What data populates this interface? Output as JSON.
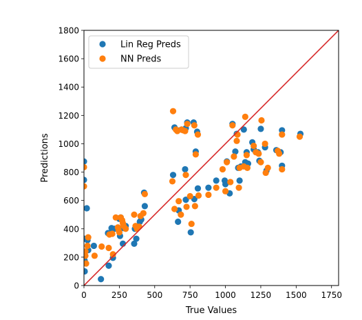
{
  "chart_data": {
    "type": "scatter",
    "title": "",
    "xlabel": "True Values",
    "ylabel": "Predictions",
    "xlim": [
      0,
      1800
    ],
    "ylim": [
      0,
      1800
    ],
    "xticks": [
      0,
      250,
      500,
      750,
      1000,
      1250,
      1500,
      1750
    ],
    "yticks": [
      0,
      200,
      400,
      600,
      800,
      1000,
      1200,
      1400,
      1600,
      1800
    ],
    "grid": false,
    "legend_position": "top-left",
    "reference_line": {
      "from": [
        0,
        0
      ],
      "to": [
        1800,
        1800
      ],
      "color": "#d62728"
    },
    "series": [
      {
        "name": "Lin Reg Preds",
        "color": "#1f77b4",
        "points": [
          [
            0,
            875
          ],
          [
            0,
            745
          ],
          [
            5,
            330
          ],
          [
            5,
            175
          ],
          [
            5,
            100
          ],
          [
            20,
            545
          ],
          [
            25,
            320
          ],
          [
            30,
            250
          ],
          [
            70,
            280
          ],
          [
            120,
            45
          ],
          [
            170,
            370
          ],
          [
            175,
            140
          ],
          [
            195,
            405
          ],
          [
            205,
            195
          ],
          [
            215,
            400
          ],
          [
            255,
            350
          ],
          [
            250,
            470
          ],
          [
            260,
            480
          ],
          [
            275,
            295
          ],
          [
            280,
            405
          ],
          [
            295,
            420
          ],
          [
            355,
            295
          ],
          [
            360,
            400
          ],
          [
            370,
            330
          ],
          [
            395,
            450
          ],
          [
            405,
            465
          ],
          [
            425,
            655
          ],
          [
            430,
            560
          ],
          [
            630,
            780
          ],
          [
            640,
            1115
          ],
          [
            660,
            1095
          ],
          [
            665,
            450
          ],
          [
            670,
            530
          ],
          [
            690,
            1100
          ],
          [
            715,
            820
          ],
          [
            720,
            1110
          ],
          [
            720,
            605
          ],
          [
            730,
            1150
          ],
          [
            755,
            375
          ],
          [
            775,
            1150
          ],
          [
            780,
            610
          ],
          [
            790,
            945
          ],
          [
            800,
            1085
          ],
          [
            805,
            685
          ],
          [
            880,
            690
          ],
          [
            935,
            740
          ],
          [
            995,
            740
          ],
          [
            1000,
            715
          ],
          [
            1010,
            875
          ],
          [
            1030,
            650
          ],
          [
            1050,
            1140
          ],
          [
            1070,
            945
          ],
          [
            1080,
            1070
          ],
          [
            1090,
            830
          ],
          [
            1100,
            740
          ],
          [
            1110,
            840
          ],
          [
            1130,
            1100
          ],
          [
            1140,
            870
          ],
          [
            1150,
            940
          ],
          [
            1160,
            860
          ],
          [
            1190,
            1010
          ],
          [
            1200,
            960
          ],
          [
            1230,
            940
          ],
          [
            1240,
            880
          ],
          [
            1250,
            1105
          ],
          [
            1280,
            975
          ],
          [
            1290,
            810
          ],
          [
            1360,
            955
          ],
          [
            1390,
            940
          ],
          [
            1400,
            845
          ],
          [
            1400,
            1095
          ],
          [
            1530,
            1070
          ]
        ]
      },
      {
        "name": "NN Preds",
        "color": "#ff7f0e",
        "points": [
          [
            0,
            835
          ],
          [
            0,
            700
          ],
          [
            10,
            240
          ],
          [
            10,
            210
          ],
          [
            15,
            155
          ],
          [
            25,
            280
          ],
          [
            30,
            340
          ],
          [
            75,
            210
          ],
          [
            125,
            275
          ],
          [
            175,
            265
          ],
          [
            180,
            360
          ],
          [
            200,
            365
          ],
          [
            205,
            220
          ],
          [
            225,
            480
          ],
          [
            240,
            410
          ],
          [
            245,
            390
          ],
          [
            250,
            375
          ],
          [
            260,
            480
          ],
          [
            270,
            460
          ],
          [
            275,
            440
          ],
          [
            280,
            420
          ],
          [
            295,
            400
          ],
          [
            355,
            500
          ],
          [
            365,
            420
          ],
          [
            375,
            400
          ],
          [
            390,
            415
          ],
          [
            400,
            490
          ],
          [
            420,
            510
          ],
          [
            430,
            645
          ],
          [
            625,
            735
          ],
          [
            630,
            1230
          ],
          [
            640,
            540
          ],
          [
            650,
            1100
          ],
          [
            660,
            1090
          ],
          [
            670,
            595
          ],
          [
            685,
            500
          ],
          [
            690,
            1100
          ],
          [
            700,
            1095
          ],
          [
            715,
            1090
          ],
          [
            720,
            780
          ],
          [
            725,
            555
          ],
          [
            730,
            1140
          ],
          [
            750,
            630
          ],
          [
            760,
            435
          ],
          [
            780,
            1130
          ],
          [
            785,
            560
          ],
          [
            790,
            925
          ],
          [
            805,
            1065
          ],
          [
            810,
            635
          ],
          [
            880,
            640
          ],
          [
            935,
            690
          ],
          [
            980,
            820
          ],
          [
            1000,
            665
          ],
          [
            1010,
            870
          ],
          [
            1035,
            730
          ],
          [
            1050,
            1130
          ],
          [
            1060,
            910
          ],
          [
            1080,
            1020
          ],
          [
            1085,
            1065
          ],
          [
            1095,
            690
          ],
          [
            1100,
            830
          ],
          [
            1130,
            840
          ],
          [
            1140,
            1190
          ],
          [
            1150,
            920
          ],
          [
            1155,
            830
          ],
          [
            1200,
            985
          ],
          [
            1215,
            940
          ],
          [
            1235,
            930
          ],
          [
            1250,
            870
          ],
          [
            1255,
            1165
          ],
          [
            1280,
            1000
          ],
          [
            1285,
            795
          ],
          [
            1300,
            830
          ],
          [
            1370,
            950
          ],
          [
            1380,
            930
          ],
          [
            1400,
            820
          ],
          [
            1400,
            1065
          ],
          [
            1525,
            1050
          ]
        ]
      }
    ]
  }
}
